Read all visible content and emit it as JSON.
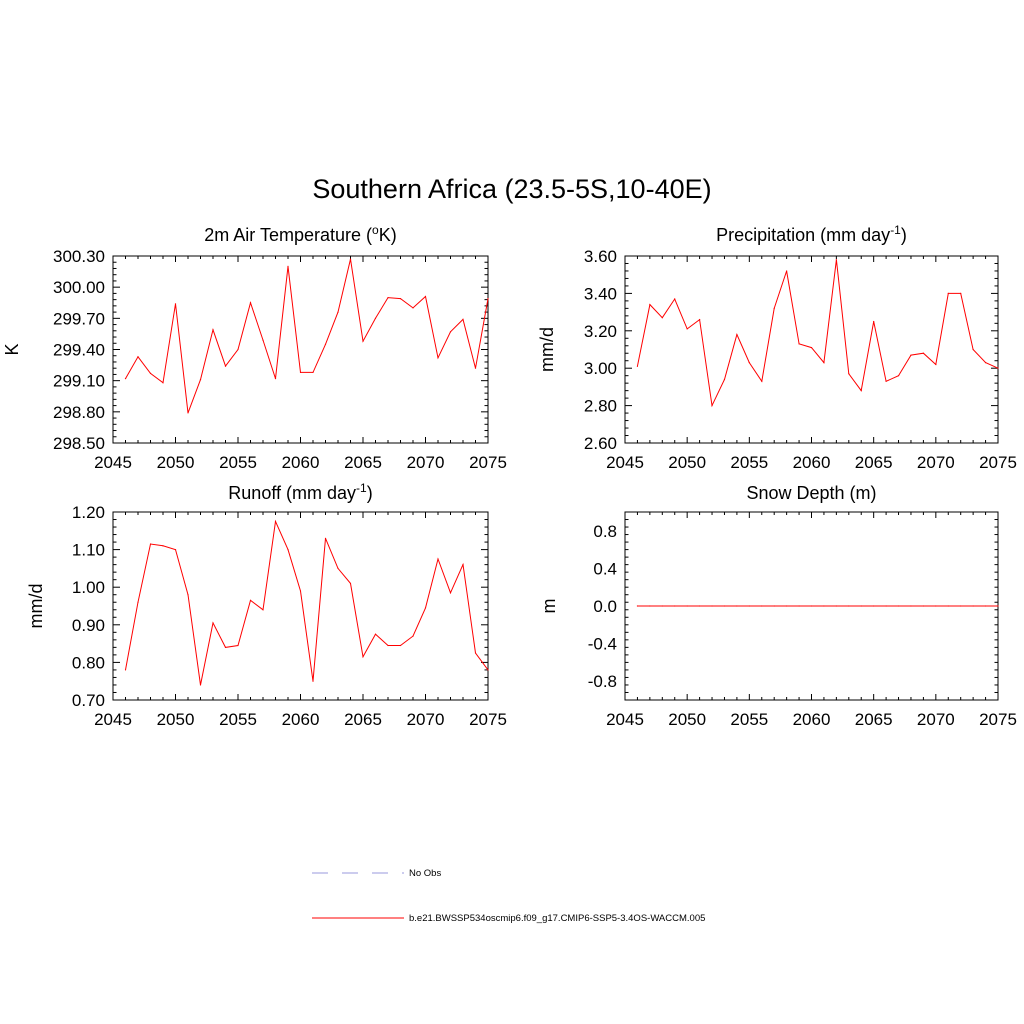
{
  "title": "Southern Africa (23.5-5S,10-40E)",
  "colors": {
    "model": "#ff0000",
    "obs": "#9999dd",
    "axis": "#000000"
  },
  "legend": {
    "entries": [
      {
        "label": "No Obs",
        "style": "dashed",
        "color": "#9999dd"
      },
      {
        "label": "b.e21.BWSSP534oscmip6.f09_g17.CMIP6-SSP5-3.4OS-WACCM.005",
        "style": "solid",
        "color": "#ff0000"
      }
    ]
  },
  "chart_data": [
    {
      "type": "line",
      "title_main": "2m Air Temperature (",
      "title_sup": "o",
      "title_end": "K)",
      "ylabel": "K",
      "xlim": [
        2045,
        2075
      ],
      "ylim": [
        298.5,
        300.3
      ],
      "xticks": [
        2045,
        2050,
        2055,
        2060,
        2065,
        2070,
        2075
      ],
      "yticks": [
        298.5,
        298.8,
        299.1,
        299.4,
        299.7,
        300.0,
        300.3
      ],
      "ytick_labels": [
        "298.50",
        "298.80",
        "299.10",
        "299.40",
        "299.70",
        "300.00",
        "300.30"
      ],
      "x": [
        2046,
        2047,
        2048,
        2049,
        2050,
        2051,
        2052,
        2053,
        2054,
        2055,
        2056,
        2057,
        2058,
        2059,
        2060,
        2061,
        2062,
        2063,
        2064,
        2065,
        2066,
        2067,
        2068,
        2069,
        2070,
        2071,
        2072,
        2073,
        2074,
        2075
      ],
      "values": [
        299.12,
        299.33,
        299.17,
        299.08,
        299.84,
        298.79,
        299.11,
        299.59,
        299.24,
        299.4,
        299.85,
        299.49,
        299.12,
        300.2,
        299.18,
        299.18,
        299.45,
        299.76,
        300.27,
        299.48,
        299.7,
        299.9,
        299.89,
        299.8,
        299.91,
        299.32,
        299.57,
        299.69,
        299.22,
        299.89
      ]
    },
    {
      "type": "line",
      "title_main": "Precipitation (mm day",
      "title_sup": "-1",
      "title_end": ")",
      "ylabel": "mm/d",
      "xlim": [
        2045,
        2075
      ],
      "ylim": [
        2.6,
        3.6
      ],
      "xticks": [
        2045,
        2050,
        2055,
        2060,
        2065,
        2070,
        2075
      ],
      "yticks": [
        2.6,
        2.8,
        3.0,
        3.2,
        3.4,
        3.6
      ],
      "ytick_labels": [
        "2.60",
        "2.80",
        "3.00",
        "3.20",
        "3.40",
        "3.60"
      ],
      "x": [
        2046,
        2047,
        2048,
        2049,
        2050,
        2051,
        2052,
        2053,
        2054,
        2055,
        2056,
        2057,
        2058,
        2059,
        2060,
        2061,
        2062,
        2063,
        2064,
        2065,
        2066,
        2067,
        2068,
        2069,
        2070,
        2071,
        2072,
        2073,
        2074,
        2075
      ],
      "values": [
        3.01,
        3.34,
        3.27,
        3.37,
        3.21,
        3.26,
        2.8,
        2.94,
        3.18,
        3.03,
        2.93,
        3.32,
        3.52,
        3.13,
        3.11,
        3.03,
        3.58,
        2.97,
        2.88,
        3.25,
        2.93,
        2.96,
        3.07,
        3.08,
        3.02,
        3.4,
        3.4,
        3.1,
        3.03,
        3.0
      ]
    },
    {
      "type": "line",
      "title_main": "Runoff (mm day",
      "title_sup": "-1",
      "title_end": ")",
      "ylabel": "mm/d",
      "xlim": [
        2045,
        2075
      ],
      "ylim": [
        0.7,
        1.2
      ],
      "xticks": [
        2045,
        2050,
        2055,
        2060,
        2065,
        2070,
        2075
      ],
      "yticks": [
        0.7,
        0.8,
        0.9,
        1.0,
        1.1,
        1.2
      ],
      "ytick_labels": [
        "0.70",
        "0.80",
        "0.90",
        "1.00",
        "1.10",
        "1.20"
      ],
      "x": [
        2046,
        2047,
        2048,
        2049,
        2050,
        2051,
        2052,
        2053,
        2054,
        2055,
        2056,
        2057,
        2058,
        2059,
        2060,
        2061,
        2062,
        2063,
        2064,
        2065,
        2066,
        2067,
        2068,
        2069,
        2070,
        2071,
        2072,
        2073,
        2074,
        2075
      ],
      "values": [
        0.78,
        0.96,
        1.115,
        1.11,
        1.1,
        0.98,
        0.74,
        0.905,
        0.84,
        0.845,
        0.965,
        0.94,
        1.175,
        1.1,
        0.99,
        0.75,
        1.13,
        1.05,
        1.01,
        0.815,
        0.875,
        0.845,
        0.845,
        0.87,
        0.945,
        1.075,
        0.985,
        1.06,
        0.825,
        0.78
      ]
    },
    {
      "type": "line",
      "title_main": "Snow Depth (m)",
      "title_sup": "",
      "title_end": "",
      "ylabel": "m",
      "xlim": [
        2045,
        2075
      ],
      "ylim": [
        -1.0,
        1.0
      ],
      "xticks": [
        2045,
        2050,
        2055,
        2060,
        2065,
        2070,
        2075
      ],
      "yticks": [
        -0.8,
        -0.4,
        0.0,
        0.4,
        0.8
      ],
      "ytick_labels": [
        "-0.8",
        "-0.4",
        "0.0",
        "0.4",
        "0.8"
      ],
      "x": [
        2046,
        2047,
        2048,
        2049,
        2050,
        2051,
        2052,
        2053,
        2054,
        2055,
        2056,
        2057,
        2058,
        2059,
        2060,
        2061,
        2062,
        2063,
        2064,
        2065,
        2066,
        2067,
        2068,
        2069,
        2070,
        2071,
        2072,
        2073,
        2074,
        2075
      ],
      "values": [
        0,
        0,
        0,
        0,
        0,
        0,
        0,
        0,
        0,
        0,
        0,
        0,
        0,
        0,
        0,
        0,
        0,
        0,
        0,
        0,
        0,
        0,
        0,
        0,
        0,
        0,
        0,
        0,
        0,
        0
      ]
    }
  ]
}
